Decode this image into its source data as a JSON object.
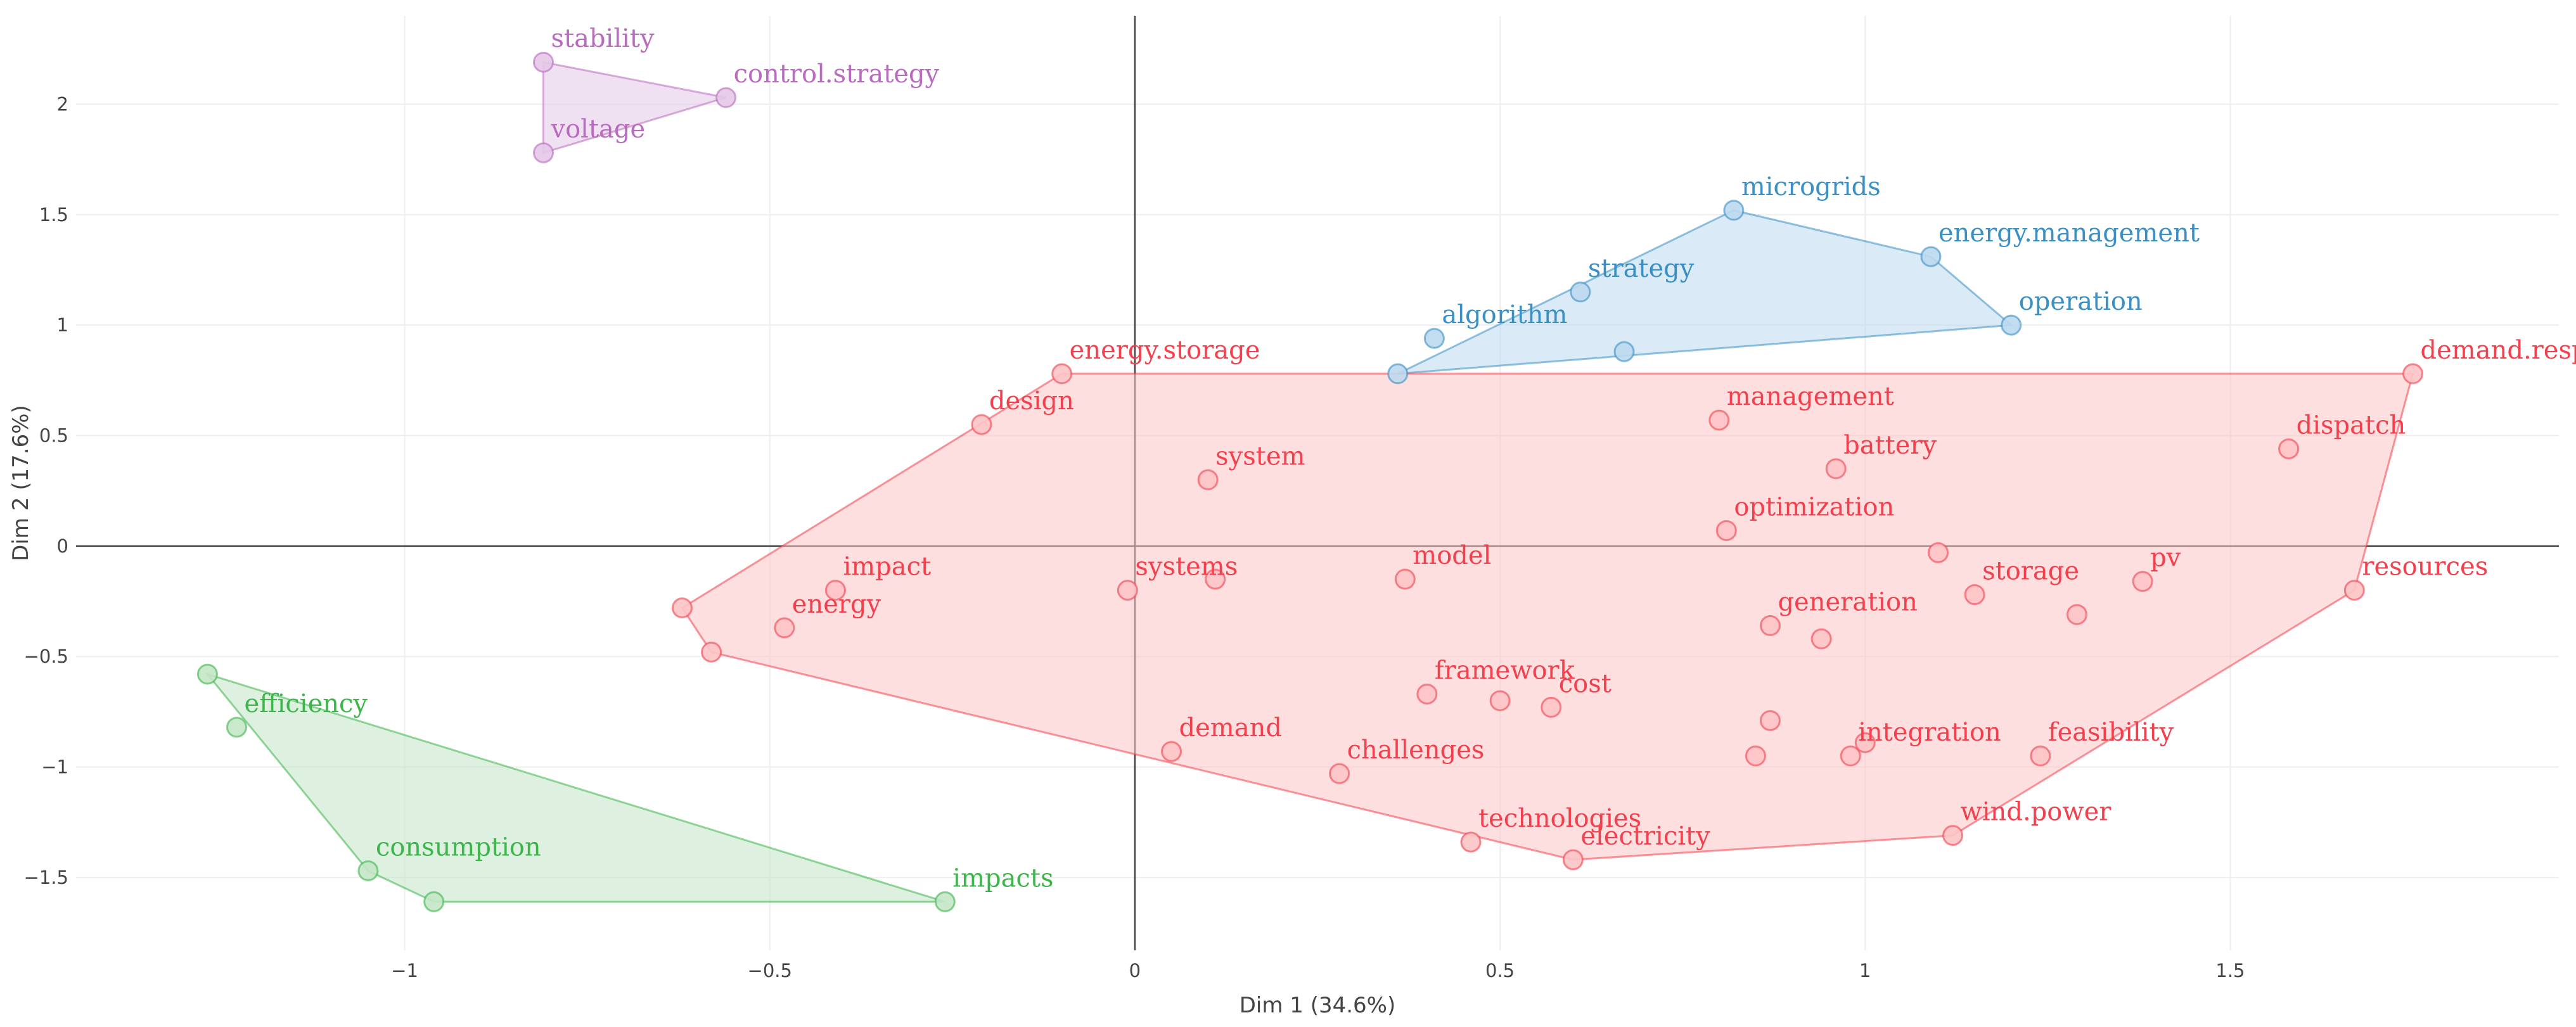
{
  "chart_data": {
    "type": "scatter",
    "xlabel": "Dim 1 (34.6%)",
    "ylabel": "Dim 2 (17.6%)",
    "xlim": [
      -1.45,
      1.95
    ],
    "ylim": [
      -1.83,
      2.4
    ],
    "xticks": [
      -1,
      -0.5,
      0,
      0.5,
      1,
      1.5
    ],
    "yticks": [
      -1.5,
      -1,
      -0.5,
      0,
      0.5,
      1,
      1.5,
      2
    ],
    "xtick_labels": [
      "−1",
      "−0.5",
      "0",
      "0.5",
      "1",
      "1.5"
    ],
    "ytick_labels": [
      "−1.5",
      "−1",
      "−0.5",
      "0",
      "0.5",
      "1",
      "1.5",
      "2"
    ],
    "grid": true,
    "clusters": [
      {
        "name": "cluster-purple",
        "color": "#b96bbf",
        "fill": "#e4c8e8",
        "hull": [
          [
            -0.81,
            2.19
          ],
          [
            -0.56,
            2.03
          ],
          [
            -0.81,
            1.78
          ]
        ],
        "points": [
          {
            "label": "stability",
            "x": -0.81,
            "y": 2.19
          },
          {
            "label": "control.strategy",
            "x": -0.56,
            "y": 2.03
          },
          {
            "label": "voltage",
            "x": -0.81,
            "y": 1.78
          }
        ]
      },
      {
        "name": "cluster-blue",
        "color": "#3a8fc4",
        "fill": "#bcd9ee",
        "hull": [
          [
            0.36,
            0.78
          ],
          [
            0.82,
            1.52
          ],
          [
            1.09,
            1.31
          ],
          [
            1.2,
            1.0
          ]
        ],
        "points": [
          {
            "label": "microgrids",
            "x": 0.82,
            "y": 1.52
          },
          {
            "label": "energy.management",
            "x": 1.09,
            "y": 1.31
          },
          {
            "label": "strategy",
            "x": 0.61,
            "y": 1.15
          },
          {
            "label": "algorithm",
            "x": 0.41,
            "y": 0.94
          },
          {
            "label": "operation",
            "x": 1.2,
            "y": 1.0
          },
          {
            "label": "",
            "x": 0.67,
            "y": 0.88
          },
          {
            "label": "",
            "x": 0.36,
            "y": 0.78
          }
        ]
      },
      {
        "name": "cluster-red",
        "color": "#f4404c",
        "fill": "#fdc4c7",
        "hull": [
          [
            -0.62,
            -0.28
          ],
          [
            -0.1,
            0.78
          ],
          [
            1.75,
            0.78
          ],
          [
            1.67,
            -0.2
          ],
          [
            1.12,
            -1.31
          ],
          [
            0.6,
            -1.42
          ],
          [
            -0.58,
            -0.48
          ]
        ],
        "points": [
          {
            "label": "energy.storage",
            "x": -0.1,
            "y": 0.78
          },
          {
            "label": "design",
            "x": -0.21,
            "y": 0.55
          },
          {
            "label": "demand.response",
            "x": 1.75,
            "y": 0.78
          },
          {
            "label": "dispatch",
            "x": 1.58,
            "y": 0.44
          },
          {
            "label": "management",
            "x": 0.8,
            "y": 0.57
          },
          {
            "label": "battery",
            "x": 0.96,
            "y": 0.35
          },
          {
            "label": "system",
            "x": 0.1,
            "y": 0.3
          },
          {
            "label": "optimization",
            "x": 0.81,
            "y": 0.07
          },
          {
            "label": "impact",
            "x": -0.41,
            "y": -0.2
          },
          {
            "label": "systems",
            "x": -0.01,
            "y": -0.2
          },
          {
            "label": "",
            "x": 0.11,
            "y": -0.15
          },
          {
            "label": "model",
            "x": 0.37,
            "y": -0.15
          },
          {
            "label": "",
            "x": 1.1,
            "y": -0.03
          },
          {
            "label": "storage",
            "x": 1.15,
            "y": -0.22
          },
          {
            "label": "pv",
            "x": 1.38,
            "y": -0.16
          },
          {
            "label": "resources",
            "x": 1.67,
            "y": -0.2
          },
          {
            "label": "",
            "x": -0.62,
            "y": -0.28
          },
          {
            "label": "energy",
            "x": -0.48,
            "y": -0.37
          },
          {
            "label": "",
            "x": -0.58,
            "y": -0.48
          },
          {
            "label": "generation",
            "x": 0.87,
            "y": -0.36
          },
          {
            "label": "",
            "x": 0.94,
            "y": -0.42
          },
          {
            "label": "",
            "x": 1.29,
            "y": -0.31
          },
          {
            "label": "framework",
            "x": 0.4,
            "y": -0.67
          },
          {
            "label": "",
            "x": 0.5,
            "y": -0.7
          },
          {
            "label": "cost",
            "x": 0.57,
            "y": -0.73
          },
          {
            "label": "",
            "x": 0.87,
            "y": -0.79
          },
          {
            "label": "demand",
            "x": 0.05,
            "y": -0.93
          },
          {
            "label": "challenges",
            "x": 0.28,
            "y": -1.03
          },
          {
            "label": "",
            "x": 0.85,
            "y": -0.95
          },
          {
            "label": "integration",
            "x": 0.98,
            "y": -0.95
          },
          {
            "label": "",
            "x": 1.0,
            "y": -0.89
          },
          {
            "label": "feasibility",
            "x": 1.24,
            "y": -0.95
          },
          {
            "label": "technologies",
            "x": 0.46,
            "y": -1.34
          },
          {
            "label": "electricity",
            "x": 0.6,
            "y": -1.42
          },
          {
            "label": "wind.power",
            "x": 1.12,
            "y": -1.31
          }
        ]
      },
      {
        "name": "cluster-green",
        "color": "#3cb54a",
        "fill": "#c3e6c7",
        "hull": [
          [
            -1.27,
            -0.58
          ],
          [
            -0.26,
            -1.61
          ],
          [
            -0.96,
            -1.61
          ],
          [
            -1.05,
            -1.47
          ]
        ],
        "points": [
          {
            "label": "",
            "x": -1.27,
            "y": -0.58
          },
          {
            "label": "efficiency",
            "x": -1.23,
            "y": -0.82
          },
          {
            "label": "consumption",
            "x": -1.05,
            "y": -1.47
          },
          {
            "label": "",
            "x": -0.96,
            "y": -1.61
          },
          {
            "label": "impacts",
            "x": -0.26,
            "y": -1.61
          }
        ]
      }
    ]
  }
}
